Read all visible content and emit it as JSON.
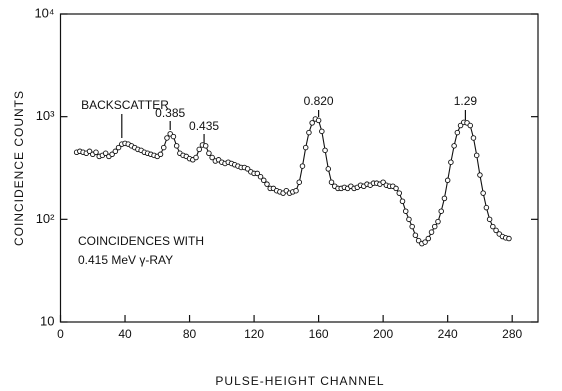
{
  "chart_data": {
    "type": "scatter",
    "line": true,
    "log_y": true,
    "color": "#111111",
    "x_label": "PULSE-HEIGHT CHANNEL",
    "y_label": "COINCIDENCE COUNTS",
    "annotations": [
      "BACKSCATTER",
      "0.385",
      "0.435",
      "0.820",
      "1.29"
    ],
    "note": [
      "COINCIDENCES WITH",
      "0.415 MeV γ-RAY"
    ],
    "xlim": [
      0,
      296
    ],
    "xticks": [
      0,
      40,
      80,
      120,
      160,
      200,
      240,
      280
    ],
    "ylim": [
      10,
      10000
    ],
    "yticks": [
      10,
      {
        "value": 100,
        "label": "10²"
      },
      {
        "value": 1000,
        "label": "10³"
      },
      {
        "value": 10000,
        "label": "10⁴"
      }
    ],
    "x": [
      10,
      12,
      14,
      16,
      18,
      20,
      22,
      24,
      26,
      28,
      30,
      32,
      34,
      36,
      38,
      40,
      42,
      44,
      46,
      48,
      50,
      52,
      54,
      56,
      58,
      60,
      62,
      64,
      66,
      68,
      70,
      72,
      74,
      76,
      78,
      80,
      82,
      84,
      86,
      88,
      90,
      92,
      94,
      96,
      98,
      100,
      102,
      104,
      106,
      108,
      110,
      112,
      114,
      116,
      118,
      120,
      122,
      124,
      126,
      128,
      130,
      132,
      134,
      136,
      138,
      140,
      142,
      144,
      146,
      148,
      150,
      152,
      154,
      156,
      158,
      160,
      162,
      164,
      166,
      168,
      170,
      172,
      174,
      176,
      178,
      180,
      182,
      184,
      186,
      188,
      190,
      192,
      194,
      196,
      198,
      200,
      202,
      204,
      206,
      208,
      210,
      212,
      214,
      216,
      218,
      220,
      222,
      224,
      226,
      228,
      230,
      232,
      234,
      236,
      238,
      240,
      242,
      244,
      246,
      248,
      250,
      252,
      254,
      256,
      258,
      260,
      262,
      264,
      266,
      268,
      270,
      272,
      274,
      276,
      278
    ],
    "values": [
      450,
      460,
      450,
      440,
      460,
      430,
      450,
      410,
      420,
      440,
      410,
      430,
      460,
      500,
      540,
      550,
      540,
      520,
      500,
      480,
      470,
      450,
      440,
      430,
      420,
      410,
      430,
      500,
      620,
      680,
      640,
      520,
      440,
      420,
      410,
      390,
      380,
      400,
      480,
      530,
      520,
      440,
      400,
      370,
      380,
      360,
      350,
      360,
      350,
      340,
      330,
      320,
      320,
      310,
      290,
      280,
      280,
      260,
      240,
      220,
      200,
      200,
      190,
      185,
      180,
      190,
      180,
      185,
      190,
      230,
      330,
      500,
      700,
      870,
      950,
      920,
      720,
      470,
      310,
      230,
      210,
      200,
      200,
      205,
      200,
      210,
      200,
      205,
      215,
      210,
      220,
      215,
      225,
      225,
      220,
      230,
      215,
      210,
      210,
      200,
      180,
      150,
      120,
      100,
      85,
      70,
      62,
      58,
      60,
      65,
      75,
      85,
      95,
      120,
      160,
      240,
      360,
      520,
      700,
      820,
      880,
      870,
      820,
      620,
      420,
      270,
      180,
      130,
      100,
      85,
      78,
      72,
      68,
      66,
      65
    ]
  }
}
